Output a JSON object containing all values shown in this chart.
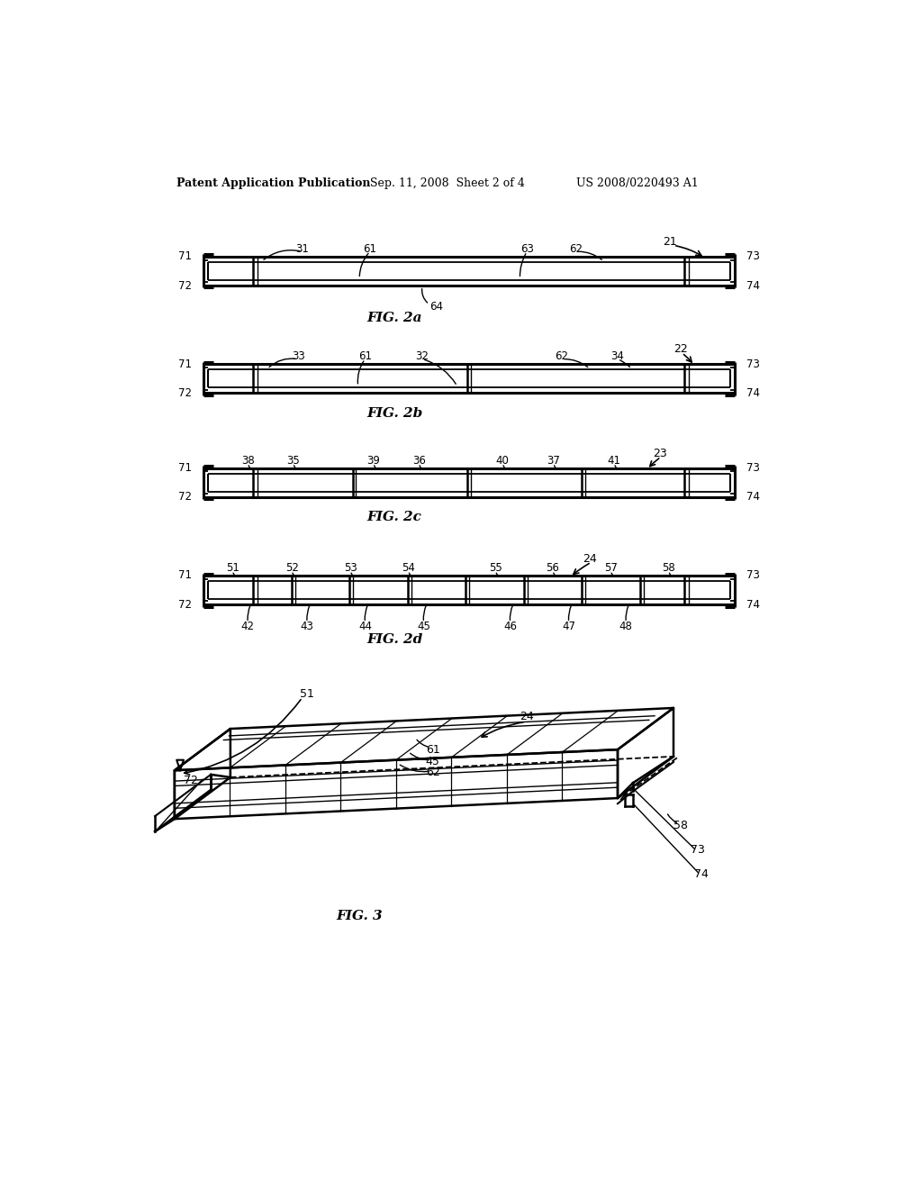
{
  "bg_color": "#ffffff",
  "header_left": "Patent Application Publication",
  "header_center": "Sep. 11, 2008  Sheet 2 of 4",
  "header_right": "US 2008/0220493 A1",
  "fig2a_label": "FIG. 2a",
  "fig2b_label": "FIG. 2b",
  "fig2c_label": "FIG. 2c",
  "fig2d_label": "FIG. 2d",
  "fig3_label": "FIG. 3"
}
